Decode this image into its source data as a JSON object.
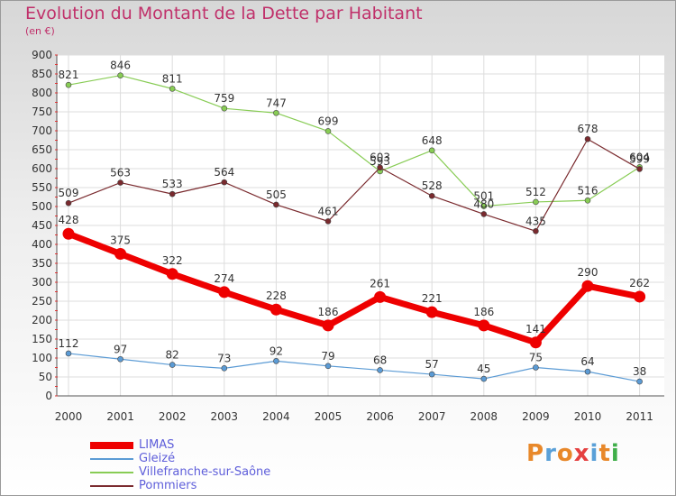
{
  "title": "Evolution du Montant de la Dette par Habitant",
  "subtitle": "(en €)",
  "logo": {
    "text": "Proxiti",
    "letter_colors": [
      "#e8882a",
      "#5aa0d8",
      "#e8882a",
      "#e54040",
      "#5aa0d8",
      "#e8882a",
      "#3fae49"
    ]
  },
  "chart_data": {
    "type": "line",
    "categories": [
      "2000",
      "2001",
      "2002",
      "2003",
      "2004",
      "2005",
      "2006",
      "2007",
      "2008",
      "2009",
      "2010",
      "2011"
    ],
    "ylim": [
      0,
      900
    ],
    "yticks": [
      0,
      50,
      100,
      150,
      200,
      250,
      300,
      350,
      400,
      450,
      500,
      550,
      600,
      650,
      700,
      750,
      800,
      850,
      900
    ],
    "grid": true,
    "legend_position": "bottom-left",
    "series": [
      {
        "name": "Villefranche-sur-Saône",
        "color": "#88cc55",
        "values": [
          821,
          846,
          811,
          759,
          747,
          699,
          593,
          648,
          501,
          512,
          516,
          604
        ]
      },
      {
        "name": "Pommiers",
        "color": "#7a2a2e",
        "values": [
          509,
          563,
          533,
          564,
          505,
          461,
          603,
          528,
          480,
          435,
          678,
          599
        ]
      },
      {
        "name": "Gleizé",
        "color": "#5b9bd5",
        "values": [
          112,
          97,
          82,
          73,
          92,
          79,
          68,
          57,
          45,
          75,
          64,
          38
        ]
      },
      {
        "name": "LIMAS",
        "color": "#ee0000",
        "values": [
          428,
          375,
          322,
          274,
          228,
          186,
          261,
          221,
          186,
          141,
          290,
          262
        ]
      }
    ],
    "legend_order": [
      "LIMAS",
      "Gleizé",
      "Villefranche-sur-Saône",
      "Pommiers"
    ]
  }
}
